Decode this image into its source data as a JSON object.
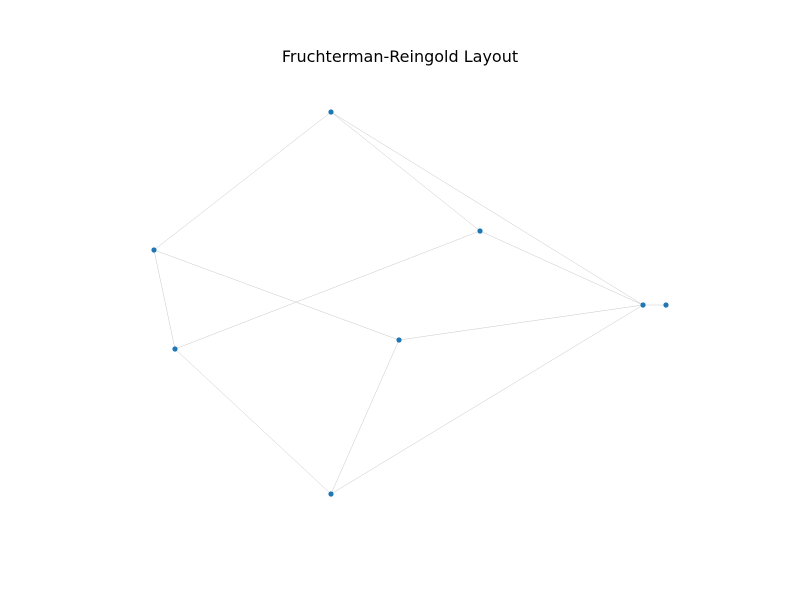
{
  "title": "Fruchterman-Reingold Layout",
  "colors": {
    "node": "#1f77b4",
    "edge": "#c8c8c8",
    "background": "#ffffff"
  },
  "graph": {
    "nodes": [
      "n0",
      "n1",
      "n2",
      "n3",
      "n4",
      "n5",
      "n6",
      "n7"
    ],
    "edges": [
      [
        "n0",
        "n1"
      ],
      [
        "n0",
        "n2"
      ],
      [
        "n0",
        "n5"
      ],
      [
        "n1",
        "n3"
      ],
      [
        "n1",
        "n4"
      ],
      [
        "n2",
        "n3"
      ],
      [
        "n2",
        "n5"
      ],
      [
        "n4",
        "n5"
      ],
      [
        "n4",
        "n7"
      ],
      [
        "n5",
        "n6"
      ],
      [
        "n5",
        "n7"
      ],
      [
        "n3",
        "n7"
      ]
    ]
  }
}
